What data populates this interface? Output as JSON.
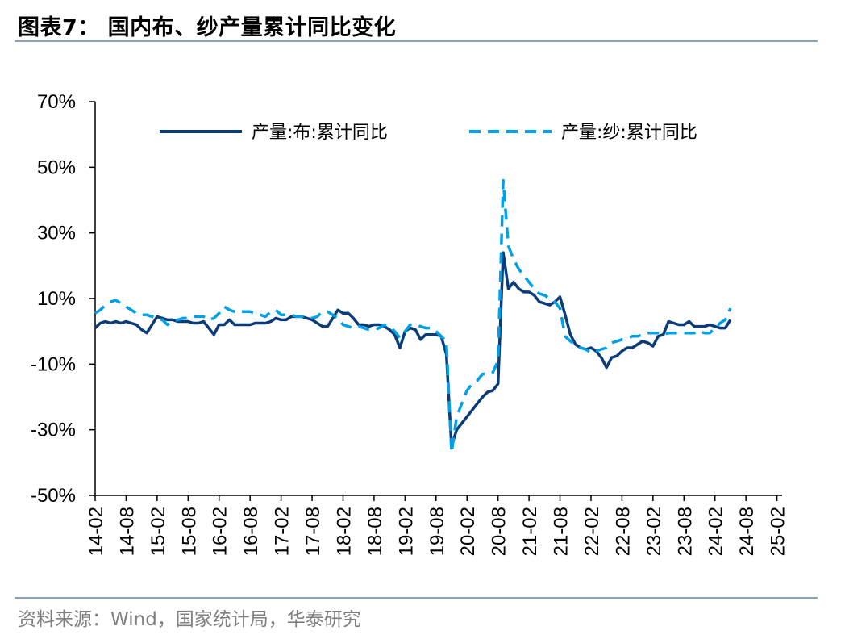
{
  "header": {
    "title": "图表7：  国内布、纱产量累计同比变化"
  },
  "footer": {
    "source": "资料来源：Wind，国家统计局，华泰研究"
  },
  "chart_data": {
    "type": "line",
    "title": "",
    "xlabel": "",
    "ylabel": "",
    "ylim": [
      -50,
      70
    ],
    "y_ticks": [
      "70%",
      "50%",
      "30%",
      "10%",
      "-10%",
      "-30%",
      "-50%"
    ],
    "y_tick_values": [
      70,
      50,
      30,
      10,
      -10,
      -30,
      -50
    ],
    "x_ticks": [
      "14-02",
      "14-08",
      "15-02",
      "15-08",
      "16-02",
      "16-08",
      "17-02",
      "17-08",
      "18-02",
      "18-08",
      "19-02",
      "19-08",
      "20-02",
      "20-08",
      "21-02",
      "21-08",
      "22-02",
      "22-08",
      "23-02",
      "23-08",
      "24-02",
      "24-08",
      "25-02"
    ],
    "x_tick_index": [
      0,
      6,
      12,
      18,
      24,
      30,
      36,
      42,
      48,
      54,
      60,
      66,
      72,
      78,
      84,
      90,
      96,
      102,
      108,
      114,
      120,
      126,
      132
    ],
    "x_count": 134,
    "grid": false,
    "legend_position": "top",
    "colors": {
      "cloth": "#0b3c78",
      "yarn": "#00a0e6"
    },
    "series": [
      {
        "name": "产量:布:累计同比",
        "style": "solid",
        "points": [
          [
            0,
            1
          ],
          [
            1,
            2.5
          ],
          [
            2,
            3
          ],
          [
            3,
            2.5
          ],
          [
            4,
            3
          ],
          [
            5,
            2.5
          ],
          [
            6,
            3
          ],
          [
            7,
            2.5
          ],
          [
            8,
            2
          ],
          [
            9,
            0.5
          ],
          [
            10,
            -0.5
          ],
          [
            11,
            2
          ],
          [
            12,
            4.5
          ],
          [
            13,
            4
          ],
          [
            14,
            3.5
          ],
          [
            15,
            3.5
          ],
          [
            16,
            3
          ],
          [
            17,
            3
          ],
          [
            18,
            3
          ],
          [
            19,
            2.5
          ],
          [
            20,
            2.5
          ],
          [
            21,
            3
          ],
          [
            22,
            1
          ],
          [
            23,
            -1
          ],
          [
            24,
            2
          ],
          [
            25,
            2
          ],
          [
            26,
            3.5
          ],
          [
            27,
            2
          ],
          [
            28,
            2
          ],
          [
            29,
            2
          ],
          [
            30,
            2
          ],
          [
            31,
            2.5
          ],
          [
            32,
            2.5
          ],
          [
            33,
            2.5
          ],
          [
            34,
            3
          ],
          [
            35,
            4
          ],
          [
            36,
            3.5
          ],
          [
            37,
            3.5
          ],
          [
            38,
            4.5
          ],
          [
            39,
            4.5
          ],
          [
            40,
            4.5
          ],
          [
            41,
            4
          ],
          [
            42,
            3.5
          ],
          [
            43,
            2.5
          ],
          [
            44,
            1.5
          ],
          [
            45,
            1.5
          ],
          [
            46,
            4
          ],
          [
            47,
            6.5
          ],
          [
            48,
            5.5
          ],
          [
            49,
            5.5
          ],
          [
            50,
            4
          ],
          [
            51,
            2
          ],
          [
            52,
            2
          ],
          [
            53,
            1.5
          ],
          [
            54,
            2
          ],
          [
            55,
            2
          ],
          [
            56,
            1.5
          ],
          [
            57,
            0.5
          ],
          [
            58,
            -1
          ],
          [
            59,
            -5
          ],
          [
            60,
            0
          ],
          [
            61,
            1
          ],
          [
            62,
            0.5
          ],
          [
            63,
            -2.5
          ],
          [
            64,
            -1
          ],
          [
            65,
            -1
          ],
          [
            66,
            -1
          ],
          [
            67,
            -1.5
          ],
          [
            68,
            -7
          ],
          [
            69,
            -35
          ],
          [
            70,
            -30
          ],
          [
            71,
            -28
          ],
          [
            72,
            -26
          ],
          [
            73,
            -24
          ],
          [
            74,
            -22
          ],
          [
            75,
            -20
          ],
          [
            76,
            -18.5
          ],
          [
            77,
            -18
          ],
          [
            78,
            -16
          ],
          [
            79,
            24
          ],
          [
            80,
            13
          ],
          [
            81,
            15
          ],
          [
            82,
            13
          ],
          [
            83,
            12
          ],
          [
            84,
            12
          ],
          [
            85,
            11
          ],
          [
            86,
            9
          ],
          [
            87,
            8.5
          ],
          [
            88,
            8
          ],
          [
            89,
            9
          ],
          [
            90,
            10.5
          ],
          [
            91,
            5
          ],
          [
            92,
            -1
          ],
          [
            93,
            -4
          ],
          [
            94,
            -5
          ],
          [
            95,
            -5.5
          ],
          [
            96,
            -5
          ],
          [
            97,
            -6
          ],
          [
            98,
            -8
          ],
          [
            99,
            -11
          ],
          [
            100,
            -8
          ],
          [
            101,
            -7.5
          ],
          [
            102,
            -6
          ],
          [
            103,
            -5
          ],
          [
            104,
            -5
          ],
          [
            105,
            -4
          ],
          [
            106,
            -3
          ],
          [
            107,
            -3.5
          ],
          [
            108,
            -4.5
          ],
          [
            109,
            -1.5
          ],
          [
            110,
            -1
          ],
          [
            111,
            3
          ],
          [
            112,
            2.5
          ],
          [
            113,
            2
          ],
          [
            114,
            2
          ],
          [
            115,
            3
          ],
          [
            116,
            1.5
          ],
          [
            117,
            1.5
          ],
          [
            118,
            1.5
          ],
          [
            119,
            2
          ],
          [
            120,
            1.5
          ],
          [
            121,
            1
          ],
          [
            122,
            1
          ],
          [
            123,
            3.5
          ]
        ]
      },
      {
        "name": "产量:纱:累计同比",
        "style": "dashed",
        "points": [
          [
            0,
            5.5
          ],
          [
            1,
            6.5
          ],
          [
            2,
            8
          ],
          [
            3,
            9
          ],
          [
            4,
            9.5
          ],
          [
            5,
            8.5
          ],
          [
            6,
            7.5
          ],
          [
            7,
            6.5
          ],
          [
            8,
            5.5
          ],
          [
            9,
            5
          ],
          [
            10,
            5
          ],
          [
            11,
            4.5
          ],
          [
            12,
            4
          ],
          [
            13,
            3.5
          ],
          [
            14,
            2
          ],
          [
            15,
            3
          ],
          [
            16,
            3.5
          ],
          [
            17,
            4
          ],
          [
            18,
            4
          ],
          [
            19,
            4.5
          ],
          [
            20,
            4.5
          ],
          [
            21,
            4.5
          ],
          [
            22,
            3.5
          ],
          [
            23,
            4
          ],
          [
            24,
            5.5
          ],
          [
            25,
            7.5
          ],
          [
            26,
            6.5
          ],
          [
            27,
            6
          ],
          [
            28,
            6
          ],
          [
            29,
            6
          ],
          [
            30,
            6
          ],
          [
            31,
            5.5
          ],
          [
            32,
            5
          ],
          [
            33,
            4.5
          ],
          [
            34,
            6
          ],
          [
            35,
            6.5
          ],
          [
            36,
            5
          ],
          [
            37,
            5
          ],
          [
            38,
            5
          ],
          [
            39,
            4.5
          ],
          [
            40,
            4.5
          ],
          [
            41,
            4.5
          ],
          [
            42,
            4
          ],
          [
            43,
            4.5
          ],
          [
            44,
            6
          ],
          [
            45,
            6
          ],
          [
            46,
            5
          ],
          [
            47,
            4
          ],
          [
            48,
            2
          ],
          [
            49,
            1.5
          ],
          [
            50,
            1
          ],
          [
            51,
            1.5
          ],
          [
            52,
            1
          ],
          [
            53,
            0.5
          ],
          [
            54,
            0.5
          ],
          [
            55,
            1
          ],
          [
            56,
            2
          ],
          [
            57,
            1.5
          ],
          [
            58,
            0
          ],
          [
            59,
            -2
          ],
          [
            60,
            0
          ],
          [
            61,
            2
          ],
          [
            62,
            2
          ],
          [
            63,
            1.5
          ],
          [
            64,
            1
          ],
          [
            65,
            1
          ],
          [
            66,
            0
          ],
          [
            67,
            -1.5
          ],
          [
            68,
            -3
          ],
          [
            69,
            -37
          ],
          [
            70,
            -26
          ],
          [
            71,
            -22
          ],
          [
            72,
            -18
          ],
          [
            73,
            -16
          ],
          [
            74,
            -15
          ],
          [
            75,
            -13
          ],
          [
            76,
            -13
          ],
          [
            77,
            -12.5
          ],
          [
            78,
            -9
          ],
          [
            79,
            46
          ],
          [
            80,
            26
          ],
          [
            81,
            22
          ],
          [
            82,
            19
          ],
          [
            83,
            17
          ],
          [
            84,
            15
          ],
          [
            85,
            13
          ],
          [
            86,
            11.5
          ],
          [
            87,
            11
          ],
          [
            88,
            10
          ],
          [
            89,
            9
          ],
          [
            90,
            7
          ],
          [
            91,
            -1.5
          ],
          [
            92,
            -3
          ],
          [
            93,
            -4
          ],
          [
            94,
            -5
          ],
          [
            95,
            -5.5
          ],
          [
            96,
            -6.5
          ],
          [
            97,
            -6
          ],
          [
            98,
            -5.5
          ],
          [
            99,
            -5
          ],
          [
            100,
            -3.5
          ],
          [
            101,
            -3
          ],
          [
            102,
            -2.5
          ],
          [
            103,
            -2
          ],
          [
            104,
            -1.5
          ],
          [
            105,
            -1.5
          ],
          [
            106,
            -1
          ],
          [
            107,
            -0.5
          ],
          [
            108,
            -0.5
          ],
          [
            109,
            -0.5
          ],
          [
            110,
            -1
          ],
          [
            111,
            -0.5
          ],
          [
            112,
            -0.5
          ],
          [
            113,
            -0.5
          ],
          [
            114,
            -0.5
          ],
          [
            115,
            -0.5
          ],
          [
            116,
            -0.5
          ],
          [
            117,
            0
          ],
          [
            118,
            -0.5
          ],
          [
            119,
            -0.5
          ],
          [
            120,
            1
          ],
          [
            121,
            2.5
          ],
          [
            122,
            3.5
          ],
          [
            123,
            7
          ]
        ]
      }
    ]
  }
}
